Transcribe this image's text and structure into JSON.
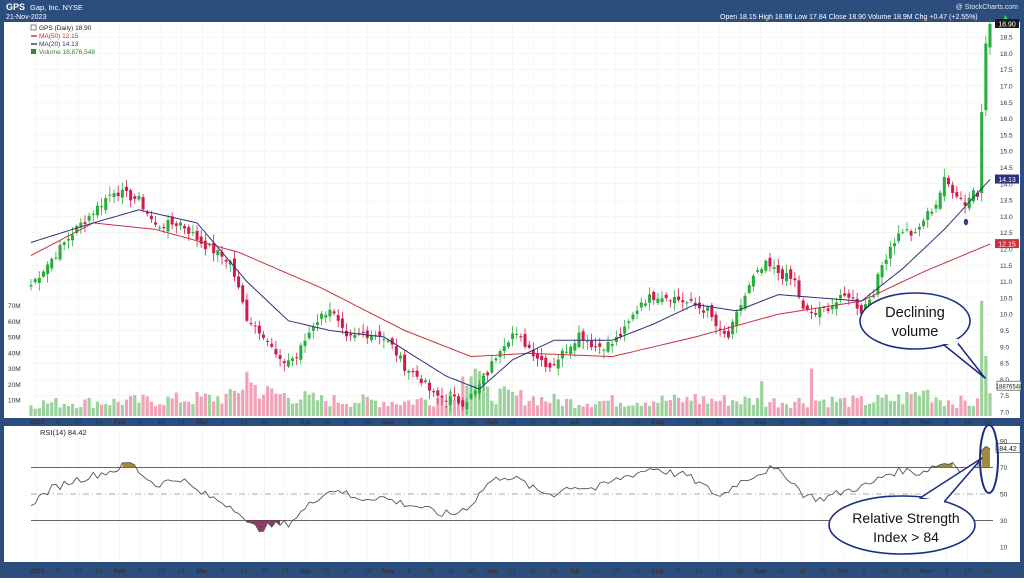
{
  "header": {
    "symbol": "GPS",
    "company": "Gap, Inc. NYSE",
    "date": "21-Nov-2023",
    "ohlc": "Open 18.15  High 18.96  Low 17.84  Close 18.90  Volume 18.9M  Chg +0.47 (+2.55%)",
    "chg_arrow": "▲",
    "watermark": "@ StockCharts.com"
  },
  "legend": [
    {
      "text": "GPS (Daily) 18.90",
      "color": "#222222",
      "kind": "price"
    },
    {
      "text": "MA(50) 12.15",
      "color": "#c8323c",
      "kind": "line"
    },
    {
      "text": "MA(20) 14.13",
      "color": "#30307a",
      "kind": "line"
    },
    {
      "text": "Volume 18,876,548",
      "color": "#2f8a36",
      "kind": "volume"
    }
  ],
  "price_tags": {
    "close": "18.90",
    "ma20": "14.13",
    "ma50": "12.15",
    "volume": "18876548"
  },
  "rsi": {
    "label": "RSI(14) 84.42",
    "value_tag": "84.42",
    "ticks": [
      "90",
      "70",
      "50",
      "30",
      "10"
    ]
  },
  "annotations": {
    "volume_note": [
      "Declining",
      "volume"
    ],
    "rsi_note": [
      "Relative Strength",
      "Index > 84"
    ]
  },
  "colors": {
    "up": "#27ad3a",
    "down": "#d11a4c",
    "ma50": "#c8323c",
    "ma20": "#30307a",
    "vol_up": "#9cd39c",
    "vol_down": "#f0a3b8",
    "rsi_line": "#555555",
    "frame": "#2c4e7e"
  },
  "chart_data": {
    "type": "candlestick",
    "title": "GPS Gap, Inc. NYSE",
    "price_axis": {
      "ylim": [
        7.0,
        18.9
      ],
      "ticks": [
        18.5,
        18.0,
        17.5,
        17.0,
        16.5,
        16.0,
        15.5,
        15.0,
        14.5,
        14.0,
        13.5,
        13.0,
        12.5,
        12.0,
        11.5,
        11.0,
        10.5,
        10.0,
        9.5,
        9.0,
        8.5,
        8.0,
        7.5,
        7.0
      ]
    },
    "volume_axis": {
      "ylim": [
        0,
        76
      ],
      "unit": "M",
      "ticks": [
        "70M",
        "60M",
        "50M",
        "40M",
        "30M",
        "20M",
        "10M"
      ]
    },
    "rsi_axis": {
      "ylim": [
        0,
        100
      ],
      "ticks": [
        90,
        70,
        50,
        30,
        10
      ],
      "bands": [
        70,
        30
      ]
    },
    "x_axis_labels": [
      "2023",
      "9",
      "17",
      "23",
      "Feb",
      "6",
      "13",
      "21",
      "Mar",
      "6",
      "13",
      "20",
      "27",
      "Apr",
      "10",
      "17",
      "24",
      "May",
      "8",
      "15",
      "22",
      "30",
      "Jun",
      "12",
      "20",
      "26",
      "Jul",
      "10",
      "17",
      "24",
      "Aug",
      "7",
      "14",
      "21",
      "28",
      "Sep",
      "11",
      "18",
      "25",
      "Oct",
      "9",
      "16",
      "23",
      "Nov",
      "6",
      "13",
      "20"
    ],
    "bottom_axis_labels": [
      "2023",
      "9",
      "17",
      "23",
      "Feb",
      "6",
      "13",
      "21",
      "Mar",
      "6",
      "13",
      "20",
      "27",
      "Apr",
      "10",
      "17",
      "24",
      "May",
      "8",
      "15",
      "22",
      "30",
      "Jun",
      "12",
      "20",
      "26",
      "Jul",
      "10",
      "17",
      "24",
      "Aug",
      "7",
      "14",
      "21",
      "28",
      "Sep",
      "11",
      "18",
      "25",
      "Oct",
      "9",
      "16",
      "23",
      "Nov",
      "6",
      "13",
      "20"
    ],
    "close_waypoints": [
      [
        0,
        10.9
      ],
      [
        10,
        12.5
      ],
      [
        20,
        13.8
      ],
      [
        26,
        13.5
      ],
      [
        30,
        12.7
      ],
      [
        36,
        12.8
      ],
      [
        41,
        12.2
      ],
      [
        48,
        11.6
      ],
      [
        52,
        9.9
      ],
      [
        56,
        9.4
      ],
      [
        60,
        8.5
      ],
      [
        64,
        8.7
      ],
      [
        68,
        9.7
      ],
      [
        72,
        10.2
      ],
      [
        76,
        9.2
      ],
      [
        80,
        9.4
      ],
      [
        84,
        9.4
      ],
      [
        87,
        9.0
      ],
      [
        90,
        8.4
      ],
      [
        94,
        8.0
      ],
      [
        97,
        7.5
      ],
      [
        101,
        7.4
      ],
      [
        104,
        7.3
      ],
      [
        107,
        7.6
      ],
      [
        110,
        8.2
      ],
      [
        113,
        9.0
      ],
      [
        116,
        9.4
      ],
      [
        119,
        9.1
      ],
      [
        122,
        8.7
      ],
      [
        125,
        8.4
      ],
      [
        128,
        8.8
      ],
      [
        132,
        9.4
      ],
      [
        136,
        9.0
      ],
      [
        140,
        9.1
      ],
      [
        143,
        9.5
      ],
      [
        147,
        10.4
      ],
      [
        151,
        10.6
      ],
      [
        155,
        10.5
      ],
      [
        159,
        10.3
      ],
      [
        163,
        10.1
      ],
      [
        166,
        9.4
      ],
      [
        168,
        9.3
      ],
      [
        171,
        10.3
      ],
      [
        174,
        11.1
      ],
      [
        177,
        11.5
      ],
      [
        181,
        11.2
      ],
      [
        184,
        11.0
      ],
      [
        186,
        10.1
      ],
      [
        189,
        10.0
      ],
      [
        193,
        10.3
      ],
      [
        197,
        10.6
      ],
      [
        200,
        10.1
      ],
      [
        203,
        10.7
      ],
      [
        205,
        11.5
      ],
      [
        207,
        12.1
      ],
      [
        210,
        12.6
      ],
      [
        213,
        12.4
      ],
      [
        215,
        12.9
      ],
      [
        218,
        13.4
      ],
      [
        220,
        14.1
      ],
      [
        223,
        13.7
      ],
      [
        225,
        13.4
      ],
      [
        227,
        13.8
      ],
      [
        228,
        13.6
      ],
      [
        229,
        16.2
      ],
      [
        230,
        18.3
      ],
      [
        231,
        18.9
      ]
    ],
    "ma50_waypoints": [
      [
        0,
        11.8
      ],
      [
        15,
        12.8
      ],
      [
        30,
        12.6
      ],
      [
        50,
        11.9
      ],
      [
        70,
        10.8
      ],
      [
        90,
        9.5
      ],
      [
        106,
        8.7
      ],
      [
        120,
        8.8
      ],
      [
        140,
        8.7
      ],
      [
        160,
        9.3
      ],
      [
        180,
        10.0
      ],
      [
        200,
        10.4
      ],
      [
        215,
        11.3
      ],
      [
        231,
        12.15
      ]
    ],
    "ma20_waypoints": [
      [
        0,
        12.2
      ],
      [
        15,
        12.8
      ],
      [
        26,
        13.2
      ],
      [
        40,
        12.8
      ],
      [
        52,
        11.0
      ],
      [
        62,
        9.8
      ],
      [
        72,
        9.5
      ],
      [
        85,
        9.3
      ],
      [
        100,
        8.1
      ],
      [
        108,
        7.7
      ],
      [
        116,
        8.6
      ],
      [
        126,
        9.2
      ],
      [
        140,
        9.2
      ],
      [
        150,
        9.7
      ],
      [
        160,
        10.3
      ],
      [
        170,
        10.1
      ],
      [
        180,
        10.6
      ],
      [
        190,
        10.5
      ],
      [
        200,
        10.4
      ],
      [
        210,
        11.4
      ],
      [
        220,
        12.6
      ],
      [
        231,
        14.13
      ]
    ],
    "volume_waypoints_m": [
      [
        0,
        8
      ],
      [
        20,
        9
      ],
      [
        30,
        10
      ],
      [
        40,
        11
      ],
      [
        48,
        12
      ],
      [
        52,
        22
      ],
      [
        56,
        15
      ],
      [
        70,
        10
      ],
      [
        90,
        9
      ],
      [
        100,
        12
      ],
      [
        104,
        20
      ],
      [
        107,
        30
      ],
      [
        110,
        14
      ],
      [
        130,
        9
      ],
      [
        150,
        10
      ],
      [
        170,
        10
      ],
      [
        180,
        9
      ],
      [
        190,
        10
      ],
      [
        200,
        9
      ],
      [
        210,
        11
      ],
      [
        215,
        16
      ],
      [
        220,
        10
      ],
      [
        228,
        8
      ],
      [
        229,
        73
      ],
      [
        230,
        38
      ],
      [
        231,
        18.9
      ]
    ],
    "volume_spikes_m": [
      [
        52,
        28
      ],
      [
        104,
        25
      ],
      [
        107,
        30
      ],
      [
        160,
        14
      ],
      [
        176,
        22
      ],
      [
        188,
        30
      ],
      [
        215,
        16
      ],
      [
        229,
        73
      ],
      [
        230,
        38
      ]
    ],
    "rsi_waypoints": [
      [
        0,
        43
      ],
      [
        5,
        54
      ],
      [
        10,
        60
      ],
      [
        20,
        68
      ],
      [
        24,
        74
      ],
      [
        26,
        67
      ],
      [
        30,
        57
      ],
      [
        36,
        62
      ],
      [
        40,
        52
      ],
      [
        46,
        44
      ],
      [
        50,
        38
      ],
      [
        52,
        27
      ],
      [
        55,
        24
      ],
      [
        58,
        26
      ],
      [
        62,
        28
      ],
      [
        64,
        33
      ],
      [
        70,
        50
      ],
      [
        74,
        54
      ],
      [
        78,
        46
      ],
      [
        84,
        48
      ],
      [
        88,
        44
      ],
      [
        94,
        40
      ],
      [
        98,
        35
      ],
      [
        102,
        35
      ],
      [
        106,
        42
      ],
      [
        110,
        58
      ],
      [
        114,
        64
      ],
      [
        118,
        60
      ],
      [
        122,
        52
      ],
      [
        126,
        50
      ],
      [
        130,
        56
      ],
      [
        136,
        54
      ],
      [
        142,
        62
      ],
      [
        146,
        66
      ],
      [
        150,
        70
      ],
      [
        154,
        66
      ],
      [
        158,
        64
      ],
      [
        162,
        56
      ],
      [
        166,
        48
      ],
      [
        170,
        58
      ],
      [
        174,
        64
      ],
      [
        178,
        69
      ],
      [
        182,
        64
      ],
      [
        186,
        50
      ],
      [
        190,
        46
      ],
      [
        194,
        50
      ],
      [
        198,
        54
      ],
      [
        202,
        57
      ],
      [
        206,
        65
      ],
      [
        210,
        68
      ],
      [
        214,
        66
      ],
      [
        218,
        72
      ],
      [
        222,
        74
      ],
      [
        225,
        66
      ],
      [
        228,
        70
      ],
      [
        229,
        83
      ],
      [
        230,
        86
      ],
      [
        231,
        84.42
      ]
    ]
  }
}
